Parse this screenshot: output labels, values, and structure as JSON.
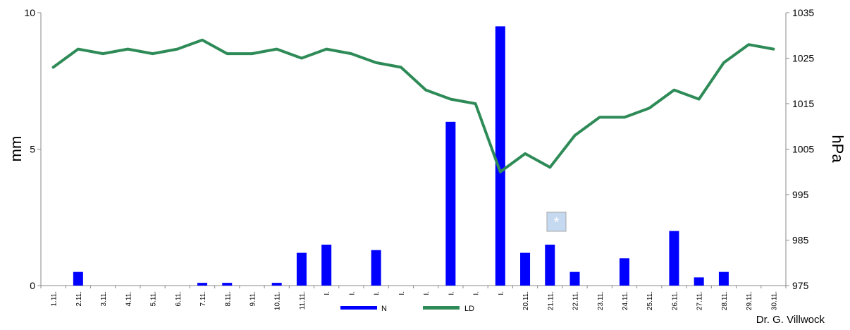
{
  "chart_data": {
    "type": "bar",
    "categories": [
      "1.11.",
      "2.11.",
      "3.11.",
      "4.11.",
      "5.11.",
      "6.11.",
      "7.11.",
      "8.11.",
      "9.11.",
      "10.11.",
      "11.11.",
      "I.",
      "I.",
      "I.",
      "I.",
      "I.",
      "I.",
      "I.",
      "I.",
      "20.11.",
      "21.11.",
      "22.11.",
      "23.11.",
      "24.11.",
      "25.11.",
      "26.11.",
      "27.11.",
      "28.11.",
      "29.11.",
      "30.11."
    ],
    "series": [
      {
        "name": "N",
        "type": "bar",
        "axis": "left",
        "color": "#0000ff",
        "values": [
          0,
          0.5,
          0,
          0,
          0,
          0,
          0.1,
          0.1,
          0,
          0.1,
          1.2,
          1.5,
          0,
          1.3,
          0,
          0,
          6.0,
          0,
          9.5,
          1.2,
          1.5,
          0.5,
          0,
          1.0,
          0,
          2.0,
          0.3,
          0.5,
          0,
          0
        ]
      },
      {
        "name": "LD",
        "type": "line",
        "axis": "right",
        "color": "#2e8b57",
        "values": [
          1023,
          1027,
          1026,
          1027,
          1026,
          1027,
          1029,
          1026,
          1026,
          1027,
          1025,
          1027,
          1026,
          1024,
          1023,
          1018,
          1016,
          1015,
          1000,
          1004,
          1001,
          1008,
          1012,
          1012,
          1014,
          1018,
          1016,
          1024,
          1028,
          1027
        ]
      }
    ],
    "ylabel": "mm",
    "y2label": "hPa",
    "ylim": [
      0,
      10
    ],
    "y2lim": [
      975,
      1035
    ],
    "yticks": [
      "0",
      "5",
      "10"
    ],
    "y2ticks": [
      "975",
      "985",
      "995",
      "1005",
      "1015",
      "1025",
      "1035"
    ],
    "legend_position": "bottom",
    "grid": false,
    "annotation": "*"
  },
  "credit": "Dr. G. Villwock"
}
